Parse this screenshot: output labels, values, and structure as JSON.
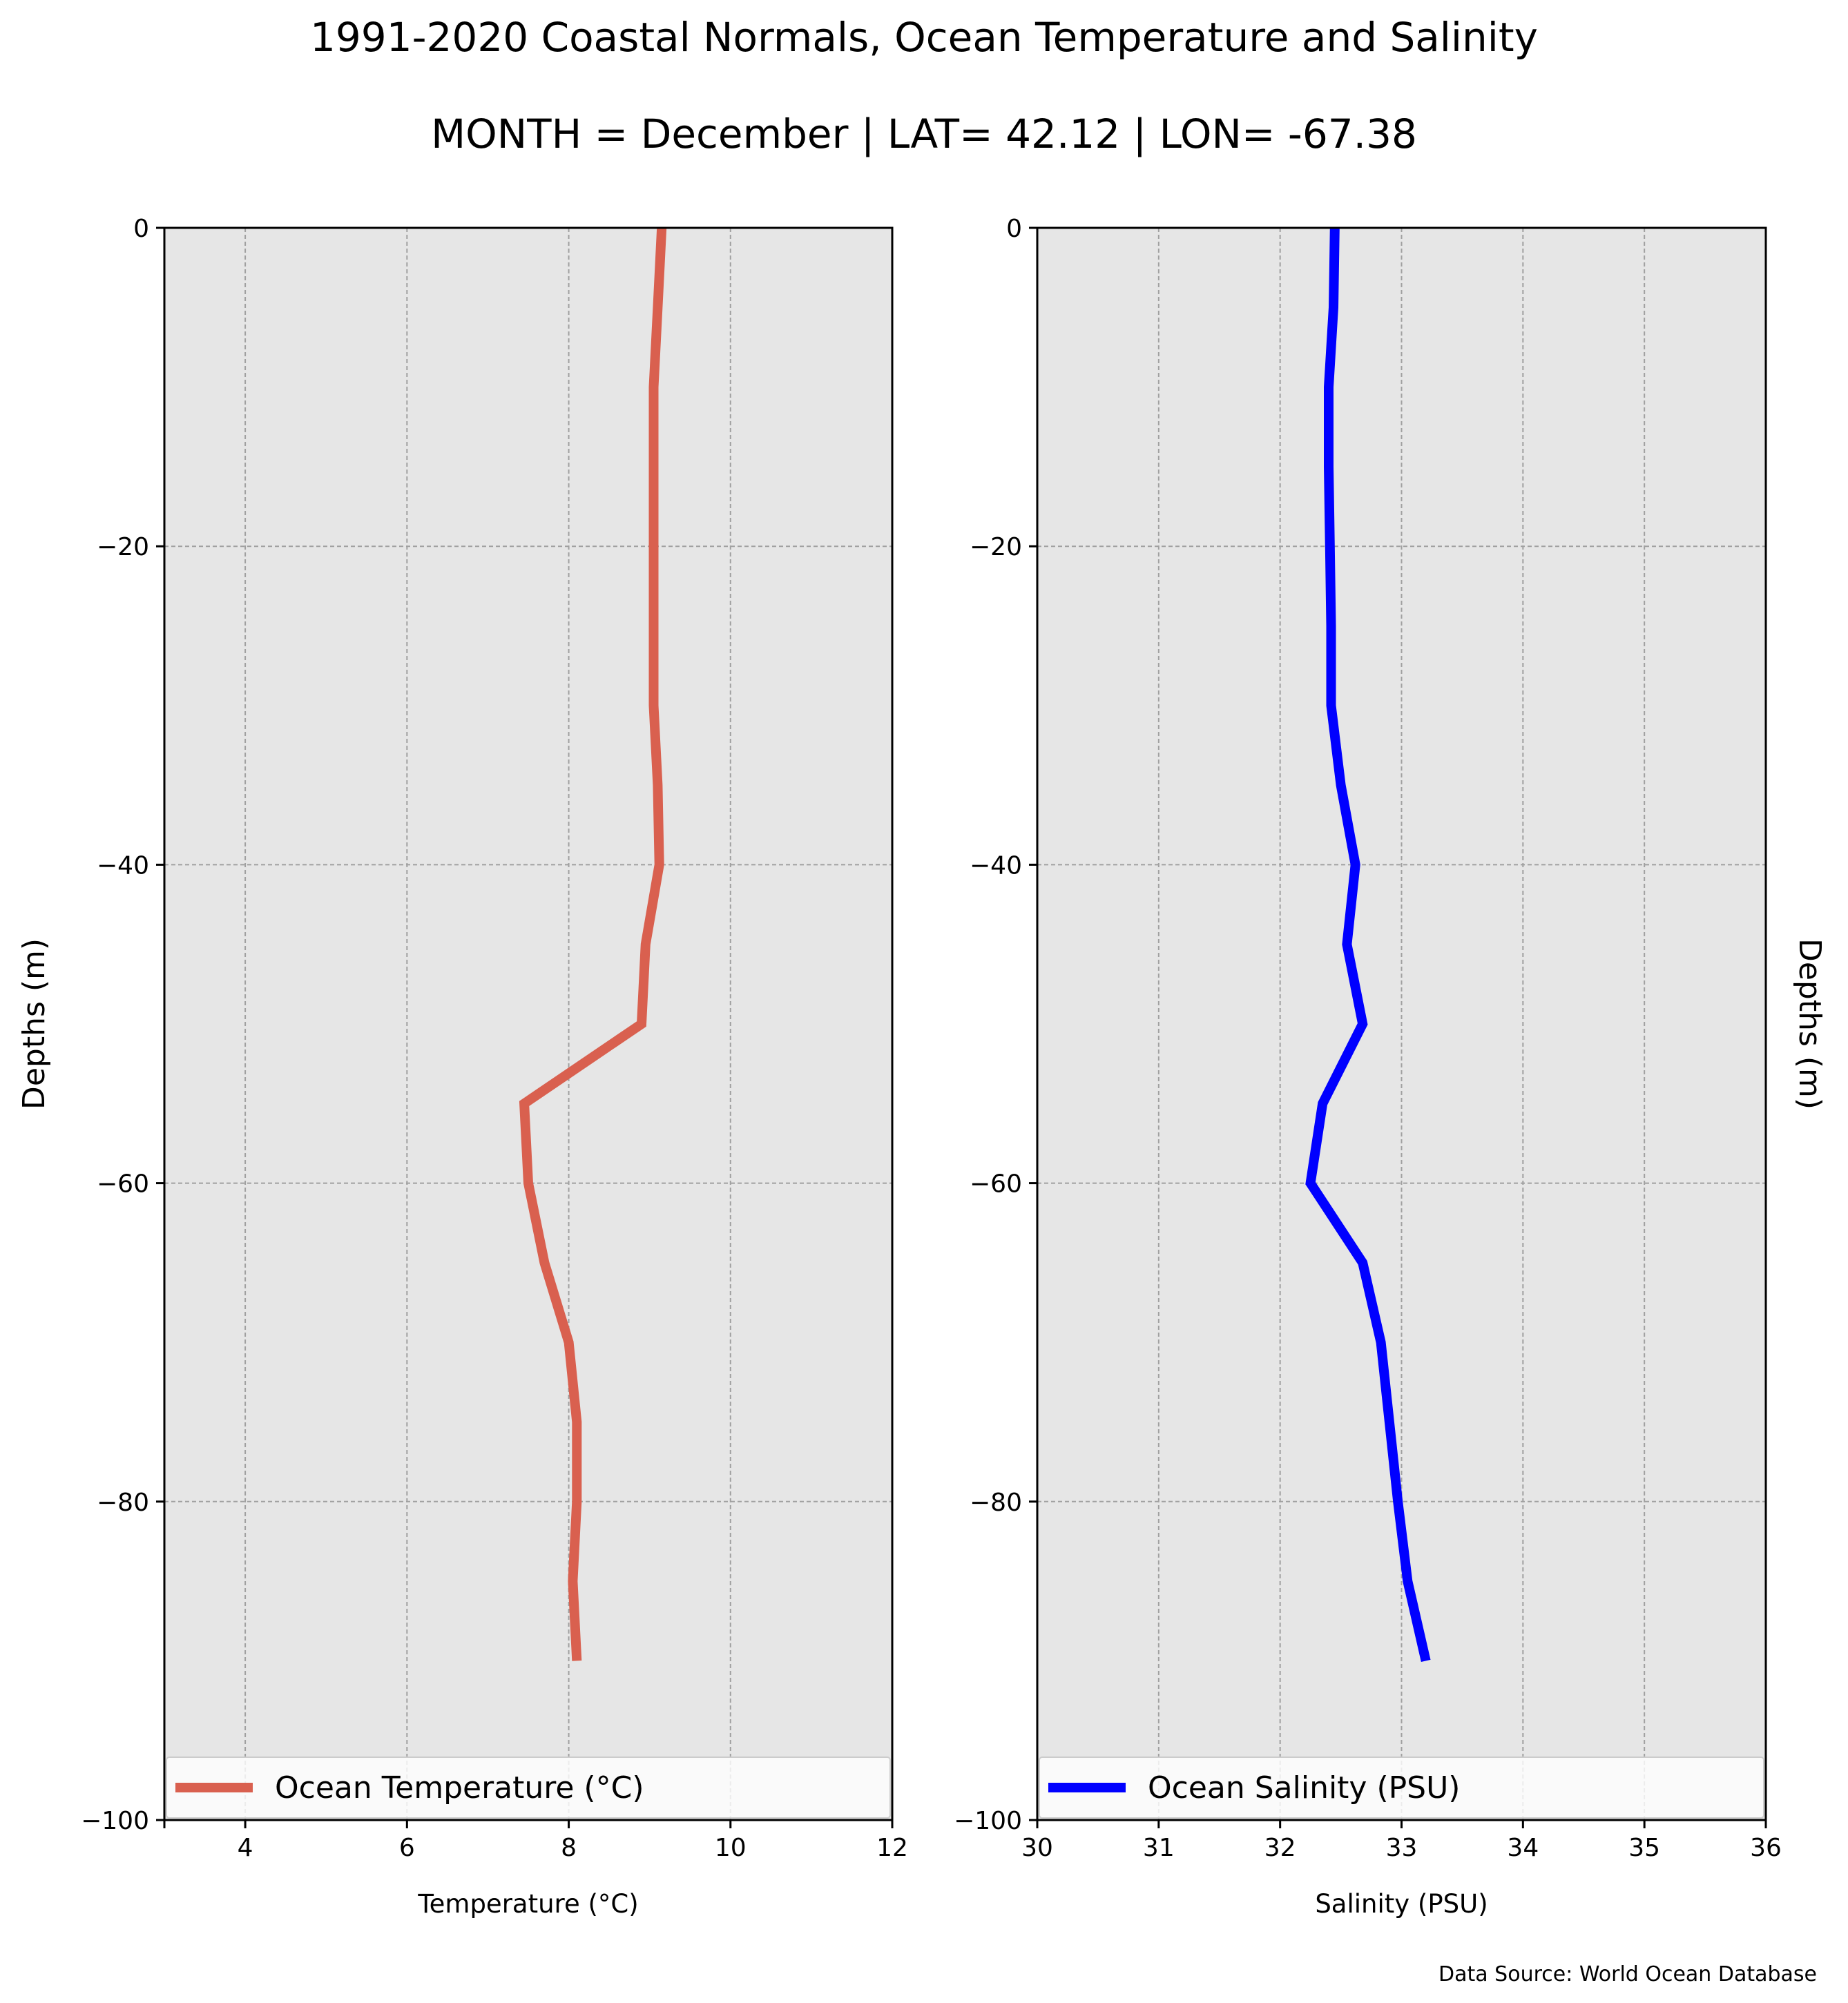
{
  "title": "1991-2020 Coastal Normals, Ocean Temperature and Salinity",
  "subtitle": "MONTH = December | LAT= 42.12 | LON= -67.38",
  "source": "Data Source: World Ocean Database",
  "chart_data": [
    {
      "type": "line",
      "xlabel": "Temperature ($^\\circ$C)",
      "ylabel": "Depths (m)",
      "xlim": [
        3,
        12
      ],
      "ylim": [
        -100,
        0
      ],
      "xticks": [
        4,
        6,
        8,
        10,
        12
      ],
      "yticks": [
        0,
        -20,
        -40,
        -60,
        -80,
        -100
      ],
      "grid": true,
      "legend_position": "bottom",
      "series": [
        {
          "name": "Ocean Temperature ($^\\circ$C)",
          "color": "#d9604f",
          "x": [
            9.15,
            9.1,
            9.05,
            9.05,
            9.05,
            9.05,
            9.05,
            9.1,
            9.12,
            8.95,
            8.9,
            7.45,
            7.5,
            7.7,
            8.0,
            8.1,
            8.1,
            8.05,
            8.1
          ],
          "y": [
            0,
            -5,
            -10,
            -15,
            -20,
            -25,
            -30,
            -35,
            -40,
            -45,
            -50,
            -55,
            -60,
            -65,
            -70,
            -75,
            -80,
            -85,
            -90
          ]
        }
      ]
    },
    {
      "type": "line",
      "xlabel": "Salinity (PSU)",
      "ylabel": "Depths (m)",
      "xlim": [
        30,
        36
      ],
      "ylim": [
        -100,
        0
      ],
      "xticks": [
        30,
        31,
        32,
        33,
        34,
        35,
        36
      ],
      "yticks": [
        0,
        -20,
        -40,
        -60,
        -80,
        -100
      ],
      "grid": true,
      "legend_position": "bottom",
      "series": [
        {
          "name": "Ocean Salinity (PSU)",
          "color": "#0000ff",
          "x": [
            32.45,
            32.44,
            32.4,
            32.4,
            32.41,
            32.42,
            32.42,
            32.5,
            32.62,
            32.55,
            32.68,
            32.35,
            32.25,
            32.68,
            32.83,
            32.9,
            32.97,
            33.05,
            33.2
          ],
          "y": [
            0,
            -5,
            -10,
            -15,
            -20,
            -25,
            -30,
            -35,
            -40,
            -45,
            -50,
            -55,
            -60,
            -65,
            -70,
            -75,
            -80,
            -85,
            -90
          ]
        }
      ]
    }
  ]
}
